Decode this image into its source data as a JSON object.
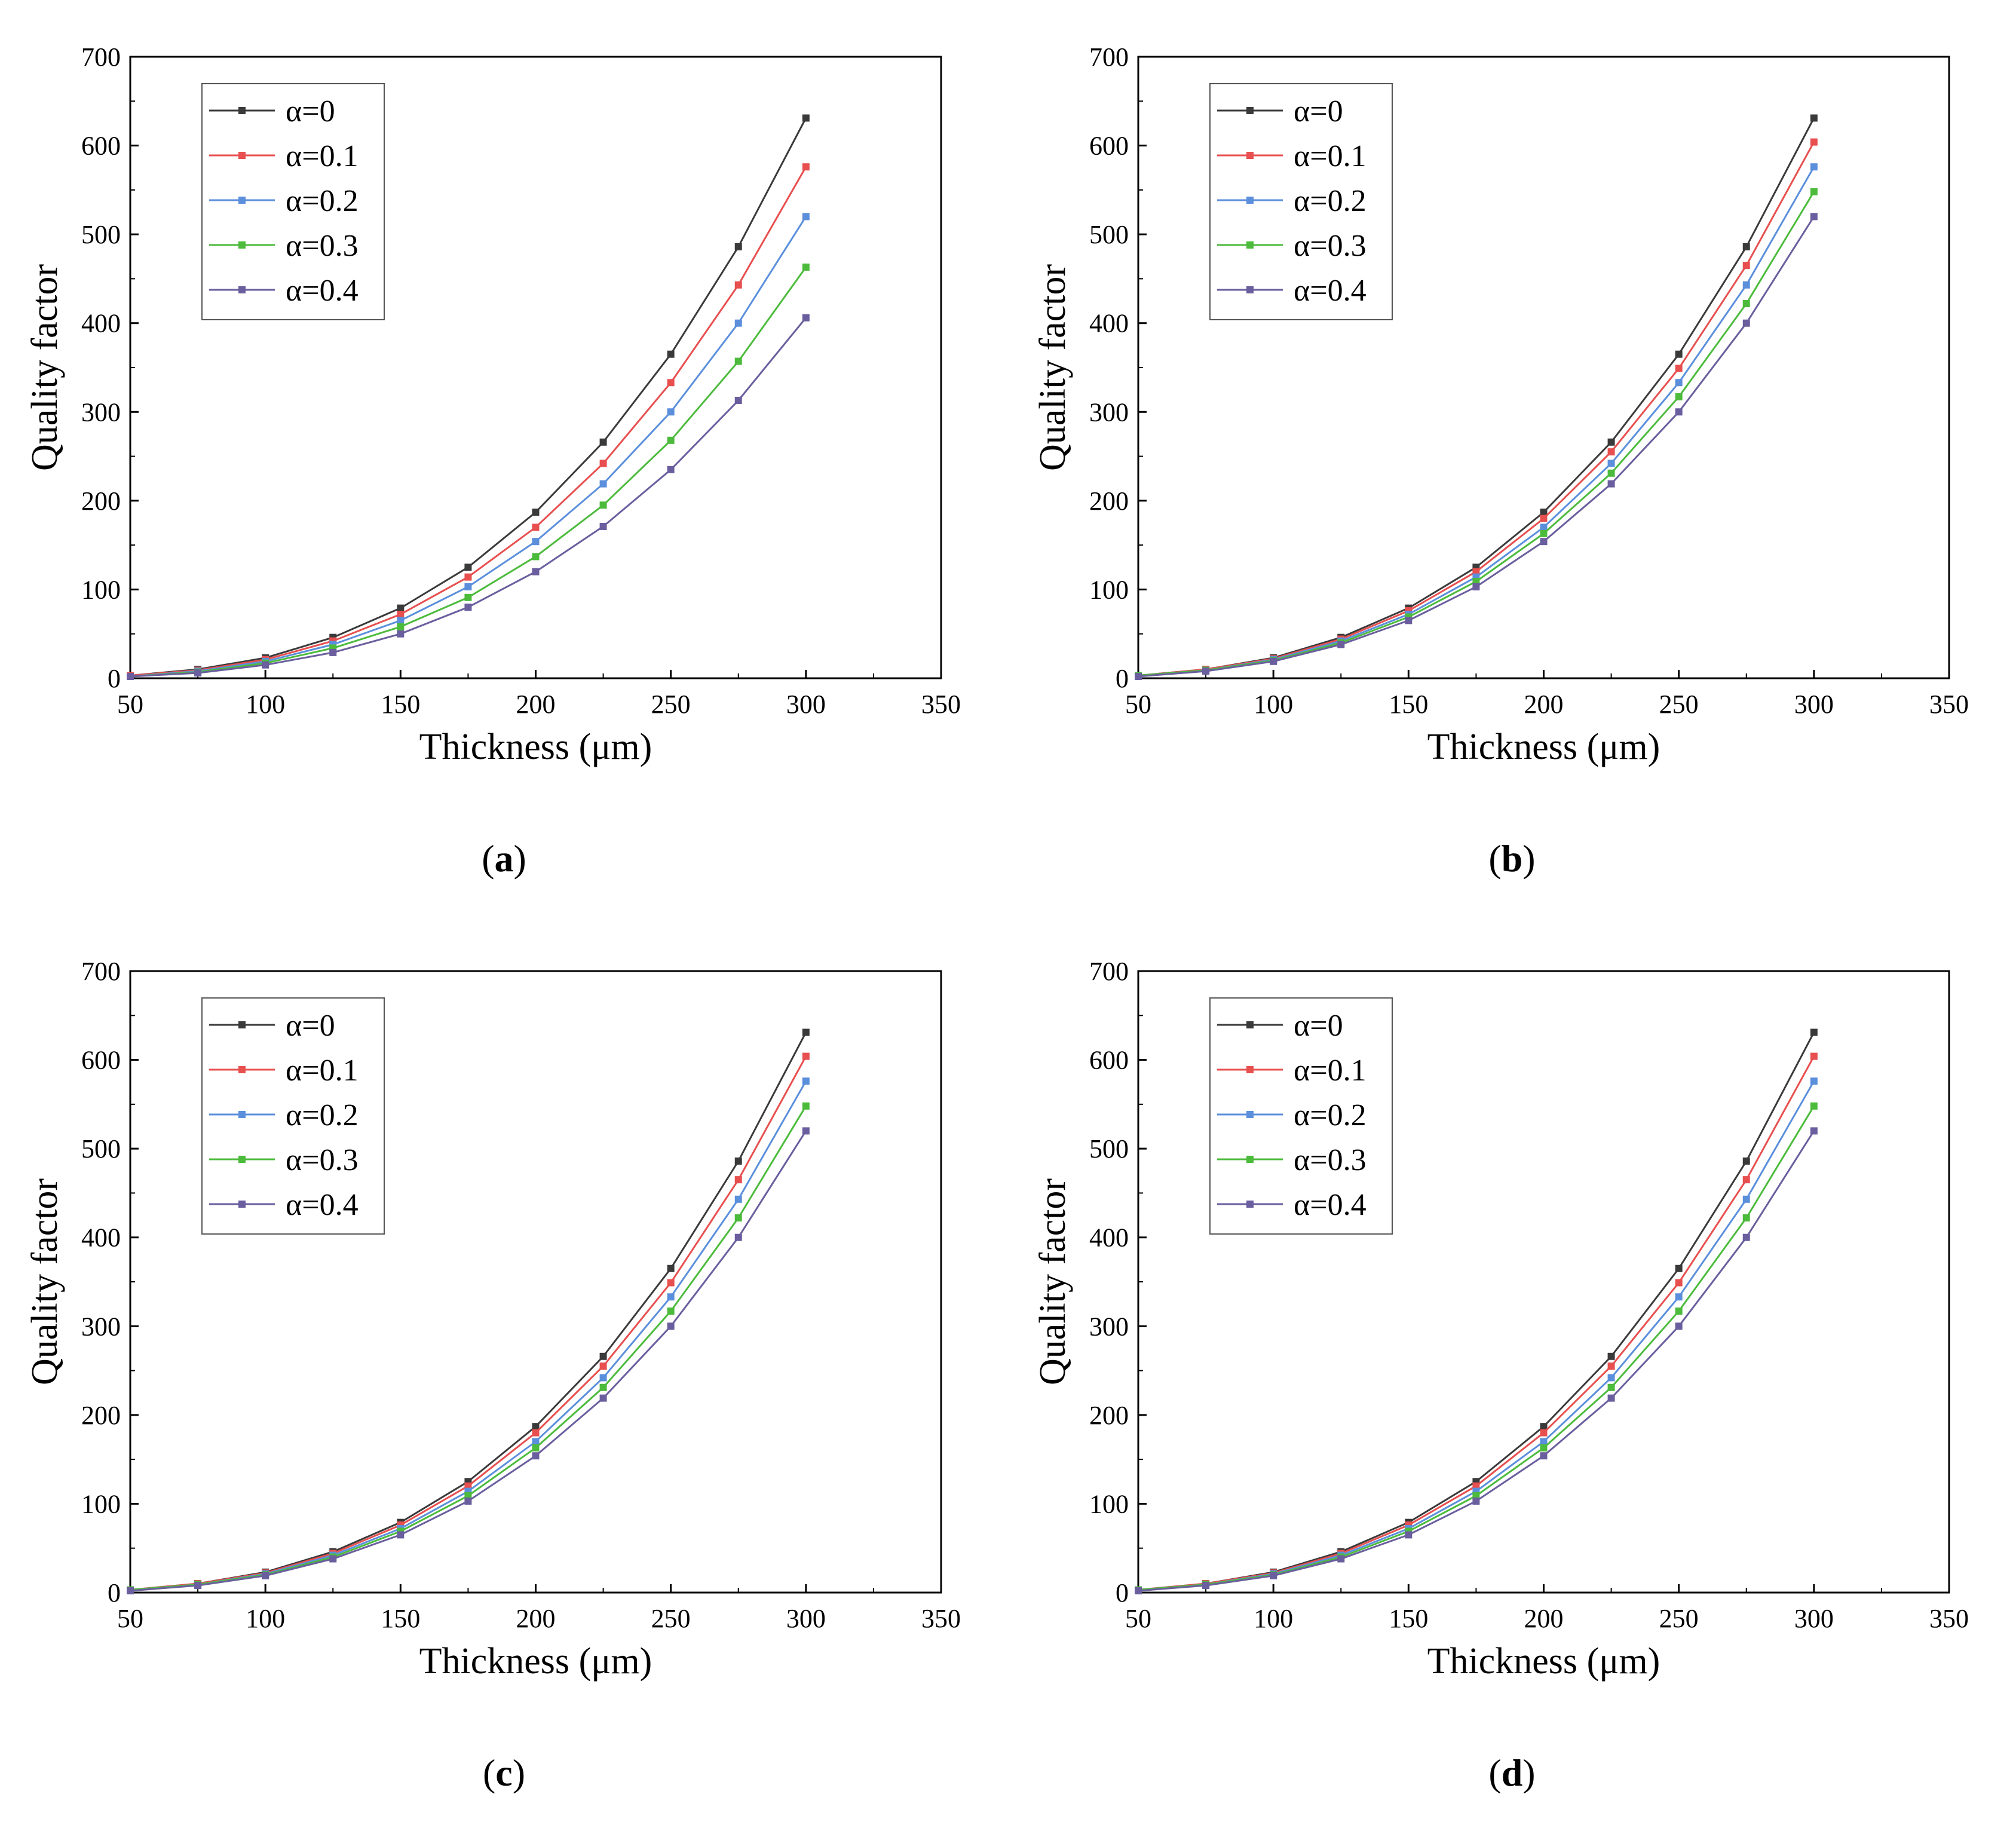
{
  "chart_data": [
    {
      "type": "line",
      "panel_label": "a",
      "xlabel": "Thickness (μm)",
      "ylabel": "Quality factor",
      "xlim": [
        50,
        350
      ],
      "ylim": [
        0,
        700
      ],
      "xticks": [
        50,
        100,
        150,
        200,
        250,
        300,
        350
      ],
      "yticks": [
        0,
        100,
        200,
        300,
        400,
        500,
        600,
        700
      ],
      "legend_position": "top-left",
      "x": [
        50,
        75,
        100,
        125,
        150,
        175,
        200,
        225,
        250,
        275,
        300
      ],
      "series": [
        {
          "name": "α=0",
          "color": "#3a3a3a",
          "values": [
            3,
            10,
            23,
            46,
            79,
            125,
            187,
            266,
            365,
            486,
            631
          ]
        },
        {
          "name": "α=0.1",
          "color": "#e84f4f",
          "values": [
            3,
            9,
            21,
            42,
            72,
            114,
            170,
            242,
            333,
            443,
            576
          ]
        },
        {
          "name": "α=0.2",
          "color": "#5b8fdc",
          "values": [
            2,
            8,
            19,
            38,
            65,
            103,
            154,
            219,
            300,
            400,
            520
          ]
        },
        {
          "name": "α=0.3",
          "color": "#4cbb3c",
          "values": [
            2,
            7,
            17,
            34,
            58,
            91,
            137,
            195,
            268,
            357,
            463
          ]
        },
        {
          "name": "α=0.4",
          "color": "#6a5e9e",
          "values": [
            2,
            6,
            15,
            29,
            50,
            80,
            120,
            171,
            235,
            313,
            406
          ]
        }
      ]
    },
    {
      "type": "line",
      "panel_label": "b",
      "xlabel": "Thickness (μm)",
      "ylabel": "Quality factor",
      "xlim": [
        50,
        350
      ],
      "ylim": [
        0,
        700
      ],
      "xticks": [
        50,
        100,
        150,
        200,
        250,
        300,
        350
      ],
      "yticks": [
        0,
        100,
        200,
        300,
        400,
        500,
        600,
        700
      ],
      "legend_position": "top-left",
      "x": [
        50,
        75,
        100,
        125,
        150,
        175,
        200,
        225,
        250,
        275,
        300
      ],
      "series": [
        {
          "name": "α=0",
          "color": "#3a3a3a",
          "values": [
            3,
            10,
            23,
            46,
            79,
            125,
            187,
            266,
            365,
            486,
            631
          ]
        },
        {
          "name": "α=0.1",
          "color": "#e84f4f",
          "values": [
            3,
            10,
            22,
            44,
            76,
            120,
            180,
            255,
            349,
            465,
            604
          ]
        },
        {
          "name": "α=0.2",
          "color": "#5b8fdc",
          "values": [
            3,
            9,
            21,
            42,
            72,
            114,
            170,
            242,
            333,
            443,
            576
          ]
        },
        {
          "name": "α=0.3",
          "color": "#4cbb3c",
          "values": [
            3,
            9,
            20,
            40,
            69,
            109,
            163,
            231,
            317,
            422,
            548
          ]
        },
        {
          "name": "α=0.4",
          "color": "#6a5e9e",
          "values": [
            2,
            8,
            19,
            38,
            65,
            103,
            154,
            219,
            300,
            400,
            520
          ]
        }
      ]
    },
    {
      "type": "line",
      "panel_label": "c",
      "xlabel": "Thickness (μm)",
      "ylabel": "Quality factor",
      "xlim": [
        50,
        350
      ],
      "ylim": [
        0,
        700
      ],
      "xticks": [
        50,
        100,
        150,
        200,
        250,
        300,
        350
      ],
      "yticks": [
        0,
        100,
        200,
        300,
        400,
        500,
        600,
        700
      ],
      "legend_position": "top-left",
      "x": [
        50,
        75,
        100,
        125,
        150,
        175,
        200,
        225,
        250,
        275,
        300
      ],
      "series": [
        {
          "name": "α=0",
          "color": "#3a3a3a",
          "values": [
            3,
            10,
            23,
            46,
            79,
            125,
            187,
            266,
            365,
            486,
            631
          ]
        },
        {
          "name": "α=0.1",
          "color": "#e84f4f",
          "values": [
            3,
            10,
            22,
            44,
            76,
            120,
            180,
            255,
            349,
            465,
            604
          ]
        },
        {
          "name": "α=0.2",
          "color": "#5b8fdc",
          "values": [
            3,
            9,
            21,
            42,
            72,
            114,
            170,
            242,
            333,
            443,
            576
          ]
        },
        {
          "name": "α=0.3",
          "color": "#4cbb3c",
          "values": [
            3,
            9,
            20,
            40,
            69,
            109,
            163,
            231,
            317,
            422,
            548
          ]
        },
        {
          "name": "α=0.4",
          "color": "#6a5e9e",
          "values": [
            2,
            8,
            19,
            38,
            65,
            103,
            154,
            219,
            300,
            400,
            520
          ]
        }
      ]
    },
    {
      "type": "line",
      "panel_label": "d",
      "xlabel": "Thickness (μm)",
      "ylabel": "Quality factor",
      "xlim": [
        50,
        350
      ],
      "ylim": [
        0,
        700
      ],
      "xticks": [
        50,
        100,
        150,
        200,
        250,
        300,
        350
      ],
      "yticks": [
        0,
        100,
        200,
        300,
        400,
        500,
        600,
        700
      ],
      "legend_position": "top-left",
      "x": [
        50,
        75,
        100,
        125,
        150,
        175,
        200,
        225,
        250,
        275,
        300
      ],
      "series": [
        {
          "name": "α=0",
          "color": "#3a3a3a",
          "values": [
            3,
            10,
            23,
            46,
            79,
            125,
            187,
            266,
            365,
            486,
            631
          ]
        },
        {
          "name": "α=0.1",
          "color": "#e84f4f",
          "values": [
            3,
            10,
            22,
            44,
            76,
            120,
            180,
            255,
            349,
            465,
            604
          ]
        },
        {
          "name": "α=0.2",
          "color": "#5b8fdc",
          "values": [
            3,
            9,
            21,
            42,
            72,
            114,
            170,
            242,
            333,
            443,
            576
          ]
        },
        {
          "name": "α=0.3",
          "color": "#4cbb3c",
          "values": [
            3,
            9,
            20,
            40,
            69,
            109,
            163,
            231,
            317,
            422,
            548
          ]
        },
        {
          "name": "α=0.4",
          "color": "#6a5e9e",
          "values": [
            2,
            8,
            19,
            38,
            65,
            103,
            154,
            219,
            300,
            400,
            520
          ]
        }
      ]
    }
  ]
}
